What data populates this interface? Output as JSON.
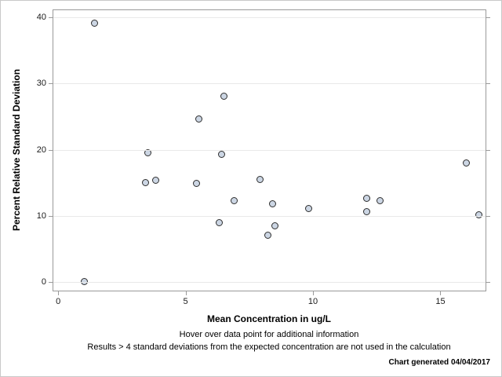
{
  "page": {
    "footnote1": "Hover over data point for additional information",
    "footnote2": "Results > 4 standard deviations from the expected concentration are not used in the calculation",
    "generated": "Chart generated 04/04/2017"
  },
  "colors": {
    "marker_fill": "#ccd6e4",
    "marker_stroke": "#2e2e2e",
    "axis_border": "#9a9a9a",
    "gridline": "#e9e9e9"
  },
  "chart_data": {
    "type": "scatter",
    "title": "",
    "xlabel": "Mean Concentration in ug/L",
    "ylabel": "Percent Relative Standard Deviation",
    "x_ticks": [
      0,
      5,
      10,
      15
    ],
    "y_ticks": [
      0,
      10,
      20,
      30,
      40
    ],
    "x_range": [
      -0.22,
      16.77
    ],
    "y_range": [
      -1.3,
      41.2
    ],
    "grid": "horizontal",
    "legend": "none",
    "marker": {
      "shape": "circle",
      "size": 9
    },
    "points": [
      [
        1.0,
        0.1
      ],
      [
        1.4,
        39.2
      ],
      [
        3.4,
        15.1
      ],
      [
        3.5,
        19.6
      ],
      [
        3.8,
        15.4
      ],
      [
        5.4,
        15.0
      ],
      [
        5.5,
        24.7
      ],
      [
        6.3,
        9.0
      ],
      [
        6.4,
        19.3
      ],
      [
        6.5,
        28.1
      ],
      [
        6.9,
        12.4
      ],
      [
        7.9,
        15.5
      ],
      [
        8.2,
        7.1
      ],
      [
        8.4,
        11.9
      ],
      [
        8.5,
        8.5
      ],
      [
        9.8,
        11.2
      ],
      [
        12.1,
        12.7
      ],
      [
        12.1,
        10.7
      ],
      [
        12.6,
        12.3
      ],
      [
        16.0,
        18.0
      ],
      [
        16.5,
        10.2
      ]
    ]
  }
}
